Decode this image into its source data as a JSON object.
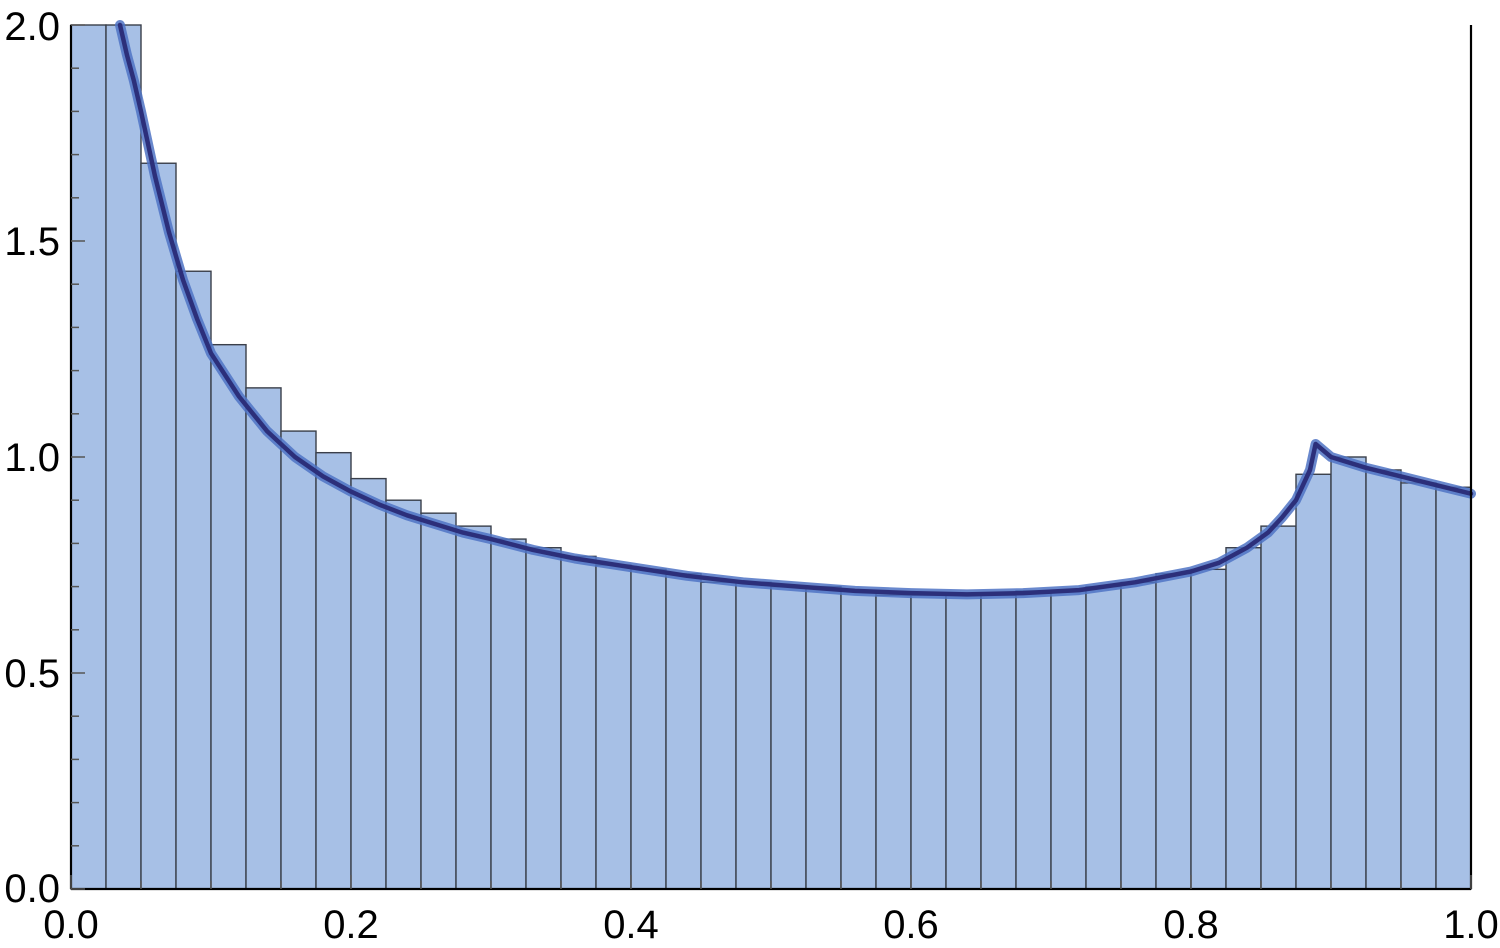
{
  "chart_data": {
    "type": "bar",
    "title": "",
    "xlabel": "",
    "ylabel": "",
    "xlim": [
      0,
      1
    ],
    "ylim": [
      0,
      2
    ],
    "grid": false,
    "legend": "none",
    "x_ticks": [
      "0.0",
      "0.2",
      "0.4",
      "0.6",
      "0.8",
      "1.0"
    ],
    "x_tick_values": [
      0,
      0.2,
      0.4,
      0.6,
      0.8,
      1.0
    ],
    "y_ticks": [
      "0.0",
      "0.5",
      "1.0",
      "1.5",
      "2.0"
    ],
    "y_tick_values": [
      0,
      0.5,
      1.0,
      1.5,
      2.0
    ],
    "bin_width": 0.025,
    "histogram": {
      "bin_starts": [
        0,
        0.025,
        0.05,
        0.075,
        0.1,
        0.125,
        0.15,
        0.175,
        0.2,
        0.225,
        0.25,
        0.275,
        0.3,
        0.325,
        0.35,
        0.375,
        0.4,
        0.425,
        0.45,
        0.475,
        0.5,
        0.525,
        0.55,
        0.575,
        0.6,
        0.625,
        0.65,
        0.675,
        0.7,
        0.725,
        0.75,
        0.775,
        0.8,
        0.825,
        0.85,
        0.875,
        0.9,
        0.925,
        0.95,
        0.975
      ],
      "values": [
        2.0,
        2.0,
        1.68,
        1.43,
        1.26,
        1.16,
        1.06,
        1.01,
        0.95,
        0.9,
        0.87,
        0.84,
        0.81,
        0.79,
        0.77,
        0.75,
        0.74,
        0.73,
        0.71,
        0.71,
        0.7,
        0.7,
        0.69,
        0.68,
        0.68,
        0.68,
        0.68,
        0.69,
        0.69,
        0.7,
        0.71,
        0.73,
        0.74,
        0.79,
        0.84,
        0.96,
        1.0,
        0.97,
        0.94,
        0.93
      ]
    },
    "series": [
      {
        "type": "line",
        "x": [
          0.035,
          0.04,
          0.045,
          0.05,
          0.06,
          0.07,
          0.08,
          0.09,
          0.1,
          0.12,
          0.14,
          0.16,
          0.18,
          0.2,
          0.22,
          0.24,
          0.26,
          0.28,
          0.3,
          0.33,
          0.36,
          0.4,
          0.44,
          0.48,
          0.52,
          0.56,
          0.6,
          0.64,
          0.68,
          0.72,
          0.76,
          0.8,
          0.82,
          0.84,
          0.855,
          0.865,
          0.875,
          0.88,
          0.885,
          0.889,
          0.9,
          0.925,
          0.95,
          0.975,
          1.0
        ],
        "y": [
          2.0,
          1.93,
          1.87,
          1.8,
          1.65,
          1.52,
          1.41,
          1.32,
          1.24,
          1.14,
          1.06,
          1.0,
          0.955,
          0.92,
          0.89,
          0.865,
          0.845,
          0.825,
          0.81,
          0.785,
          0.765,
          0.745,
          0.725,
          0.71,
          0.7,
          0.69,
          0.685,
          0.682,
          0.685,
          0.692,
          0.71,
          0.735,
          0.755,
          0.79,
          0.825,
          0.86,
          0.9,
          0.935,
          0.97,
          1.03,
          1.0,
          0.975,
          0.955,
          0.935,
          0.915
        ],
        "color": "#2c2f7a",
        "glow_color": "#4f73c4"
      }
    ],
    "colors": {
      "bar_fill": "#a7c0e6",
      "bar_stroke": "#3a3f4a",
      "curve": "#2c2f7a",
      "curve_glow": "#4f73c4"
    }
  }
}
